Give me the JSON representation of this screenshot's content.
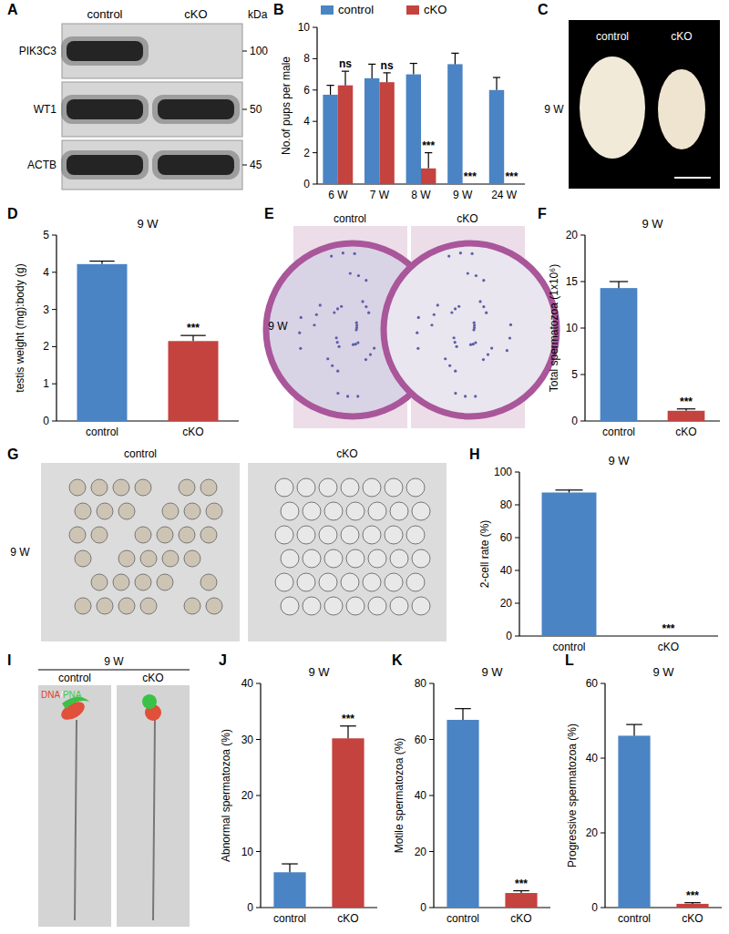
{
  "panel_labels": [
    "A",
    "B",
    "C",
    "D",
    "E",
    "F",
    "G",
    "H",
    "I",
    "J",
    "K",
    "L"
  ],
  "blot": {
    "columns": [
      "control",
      "cKO"
    ],
    "unit": "kDa",
    "rows": [
      {
        "label": "PIK3C3",
        "size": 100
      },
      {
        "label": "WT1",
        "size": 50
      },
      {
        "label": "ACTB",
        "size": 45
      }
    ]
  },
  "images": [
    {
      "columns": [
        "control",
        "cKO"
      ],
      "row_label": "9 W"
    },
    {
      "columns": [
        "control",
        "cKO"
      ],
      "row_label": "9 W"
    },
    {
      "columns": [
        "control",
        "cKO"
      ],
      "row_label": "9 W"
    },
    {
      "title": "9 W",
      "columns": [
        "control",
        "cKO"
      ],
      "stain": [
        "DNA",
        "/",
        "PNA"
      ]
    }
  ],
  "chart_data": [
    {
      "type": "bar",
      "y_label": "No.of pups per male",
      "categories": [
        "6 W",
        "7 W",
        "8 W",
        "9 W",
        "24 W"
      ],
      "series": [
        {
          "name": "control",
          "color": "#4a84c4",
          "values": [
            5.7,
            6.75,
            7.0,
            7.65,
            6.0
          ],
          "errors": [
            0.6,
            0.9,
            0.7,
            0.7,
            0.8
          ],
          "annotations": [
            null,
            null,
            null,
            null,
            null
          ]
        },
        {
          "name": "cKO",
          "color": "#c4433f",
          "values": [
            6.3,
            6.5,
            1.0,
            0,
            0
          ],
          "errors": [
            0.9,
            0.6,
            1.0,
            0,
            0
          ],
          "annotations": [
            "ns",
            "ns",
            "***",
            "***",
            "***"
          ]
        }
      ],
      "ylim": [
        0,
        10
      ],
      "yticks": [
        0,
        2,
        4,
        6,
        8,
        10
      ],
      "legend": "top"
    },
    {
      "type": "bar",
      "title": "9 W",
      "y_label": "testis weight (mg):body (g)",
      "categories": [
        "control",
        "cKO"
      ],
      "values": [
        4.22,
        2.15
      ],
      "errors": [
        0.08,
        0.15
      ],
      "colors": [
        "#4a84c4",
        "#c4433f"
      ],
      "annotations": [
        null,
        "***"
      ],
      "ylim": [
        0,
        5
      ],
      "yticks": [
        0,
        1,
        2,
        3,
        4,
        5
      ]
    },
    {
      "type": "bar",
      "title": "9 W",
      "y_label": "Total spermatozoa (1x10⁶)",
      "categories": [
        "control",
        "cKO"
      ],
      "values": [
        14.3,
        1.1
      ],
      "errors": [
        0.7,
        0.2
      ],
      "colors": [
        "#4a84c4",
        "#c4433f"
      ],
      "annotations": [
        null,
        "***"
      ],
      "ylim": [
        0,
        20
      ],
      "yticks": [
        0,
        5,
        10,
        15,
        20
      ]
    },
    {
      "type": "bar",
      "title": "9 W",
      "y_label": "2-cell rate (%)",
      "categories": [
        "control",
        "cKO"
      ],
      "values": [
        87.5,
        0
      ],
      "errors": [
        1.5,
        0
      ],
      "colors": [
        "#4a84c4",
        "#c4433f"
      ],
      "annotations": [
        null,
        "***"
      ],
      "ylim": [
        0,
        100
      ],
      "yticks": [
        0,
        20,
        40,
        60,
        80,
        100
      ]
    },
    {
      "type": "bar",
      "title": "9 W",
      "y_label": "Abnormal spermatozoa (%)",
      "categories": [
        "control",
        "cKO"
      ],
      "values": [
        6.3,
        30.2
      ],
      "errors": [
        1.5,
        2.2
      ],
      "colors": [
        "#4a84c4",
        "#c4433f"
      ],
      "annotations": [
        null,
        "***"
      ],
      "ylim": [
        0,
        40
      ],
      "yticks": [
        0,
        10,
        20,
        30,
        40
      ]
    },
    {
      "type": "bar",
      "title": "9 W",
      "y_label": "Motile spermatozoa (%)",
      "categories": [
        "control",
        "cKO"
      ],
      "values": [
        67,
        5.2
      ],
      "errors": [
        4,
        0.8
      ],
      "colors": [
        "#4a84c4",
        "#c4433f"
      ],
      "annotations": [
        null,
        "***"
      ],
      "ylim": [
        0,
        80
      ],
      "yticks": [
        0,
        20,
        40,
        60,
        80
      ]
    },
    {
      "type": "bar",
      "title": "9 W",
      "y_label": "Progressive spermatozoa (%)",
      "categories": [
        "control",
        "cKO"
      ],
      "values": [
        46,
        1
      ],
      "errors": [
        3,
        0.3
      ],
      "colors": [
        "#4a84c4",
        "#c4433f"
      ],
      "annotations": [
        null,
        "***"
      ],
      "ylim": [
        0,
        60
      ],
      "yticks": [
        0,
        20,
        40,
        60
      ]
    }
  ]
}
